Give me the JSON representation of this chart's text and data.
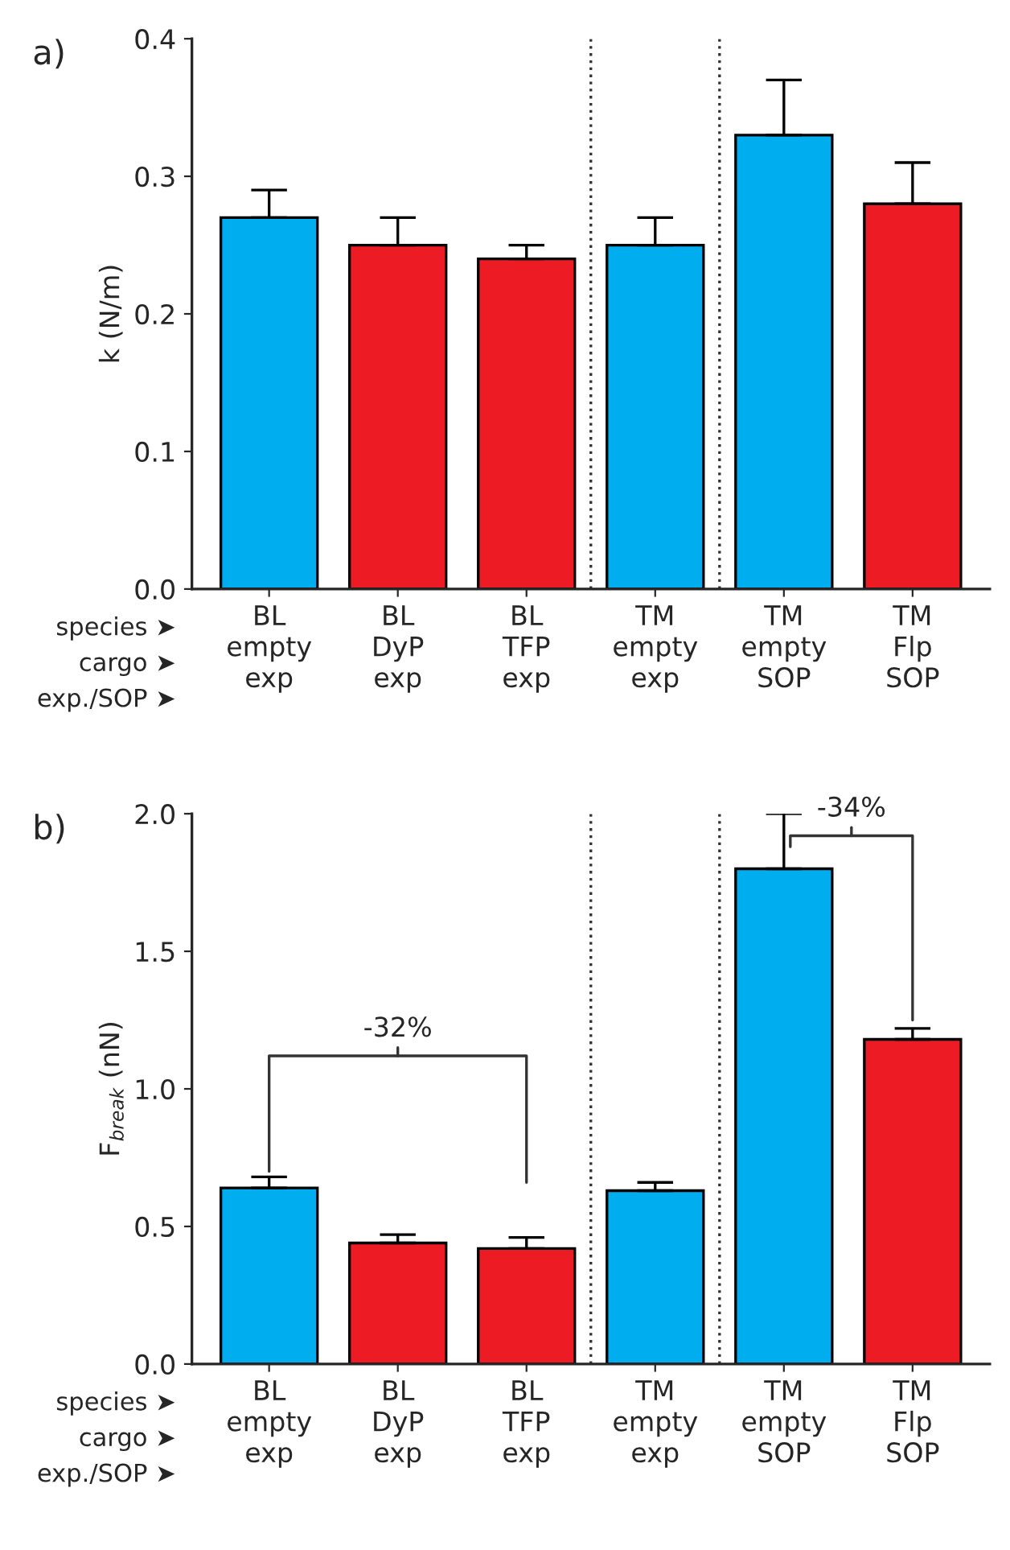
{
  "chart_data": [
    {
      "type": "bar",
      "title": "a)",
      "ylabel": "k (N/m)",
      "categories": [
        "BL\nempty\nexp",
        "BL\nDyP\nexp",
        "BL\nTFP\nexp",
        "TM\nempty\nexp",
        "TM\nempty\nSOP",
        "TM\nFlp\nSOP"
      ],
      "values": [
        0.27,
        0.25,
        0.24,
        0.25,
        0.33,
        0.28
      ],
      "colors": [
        "#00aeef",
        "#ed1c24",
        "#ed1c24",
        "#00aeef",
        "#00aeef",
        "#ed1c24"
      ],
      "errors": [
        [
          0.27,
          0.29
        ],
        [
          0.25,
          0.27
        ],
        [
          0.24,
          0.25
        ],
        [
          0.25,
          0.27
        ],
        [
          0.33,
          0.37
        ],
        [
          0.28,
          0.31
        ]
      ],
      "ylim": [
        0,
        0.4
      ],
      "yticks": [
        {
          "value": 0,
          "label": "0.0"
        },
        0.1,
        0.2,
        0.3,
        0.4
      ],
      "grid": false,
      "legend": false,
      "annotations": [
        "species ➤",
        "cargo ➤",
        "exp./SOP ➤"
      ]
    },
    {
      "type": "bar",
      "title": "b)",
      "ylabel": "F$_{break}$ (nN)",
      "categories": [
        "BL\nempty\nexp",
        "BL\nDyP\nexp",
        "BL\nTFP\nexp",
        "TM\nempty\nexp",
        "TM\nempty\nSOP",
        "TM\nFlp\nSOP"
      ],
      "values": [
        0.64,
        0.44,
        0.42,
        0.63,
        1.8,
        1.18
      ],
      "colors": [
        "#00aeef",
        "#ed1c24",
        "#ed1c24",
        "#00aeef",
        "#00aeef",
        "#ed1c24"
      ],
      "errors": [
        [
          0.64,
          0.68
        ],
        [
          0.44,
          0.47
        ],
        [
          0.42,
          0.46
        ],
        [
          0.63,
          0.66
        ],
        [
          1.8,
          2.0
        ],
        [
          1.18,
          1.22
        ]
      ],
      "ylim": [
        0,
        2.0
      ],
      "yticks": [
        {
          "value": 0,
          "label": "0.0"
        },
        0.5,
        {
          "value": 1,
          "label": "1.0"
        },
        1.5,
        {
          "value": 2,
          "label": "2.0"
        }
      ],
      "grid": false,
      "legend": false,
      "annotations": [
        "species ➤",
        "cargo ➤",
        "exp./SOP ➤",
        "-32%",
        "-34%"
      ]
    }
  ]
}
